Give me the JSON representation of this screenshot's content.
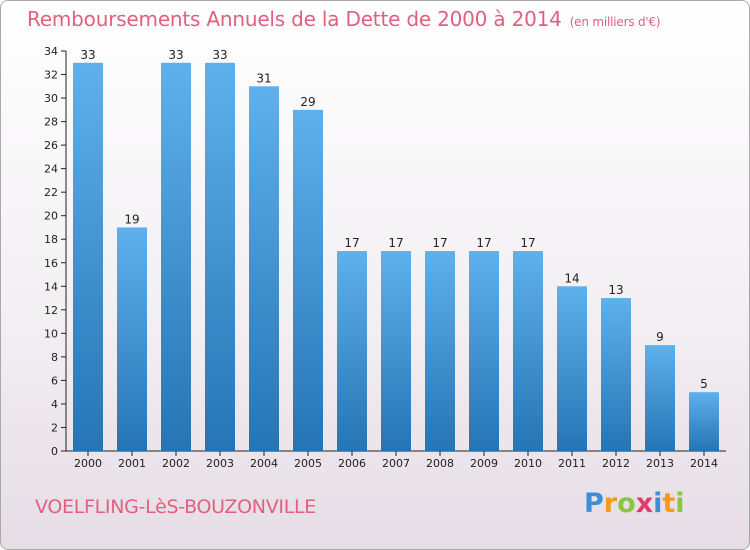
{
  "title": "Remboursements Annuels de la Dette de 2000 à 2014",
  "unit": "(en milliers d'€)",
  "city": "VOELFLING-LèS-BOUZONVILLE",
  "brand": {
    "letters": [
      "P",
      "r",
      "o",
      "x",
      "i",
      "t",
      "i"
    ],
    "colors": [
      "#3b8fd6",
      "#f39c1c",
      "#8cc63f",
      "#e23b6b",
      "#3b8fd6",
      "#f39c1c",
      "#8cc63f"
    ]
  },
  "colors": {
    "title": "#e0607e",
    "bar_top": "#5eb1ec",
    "bar_bottom": "#2674b4",
    "axis": "#222222"
  },
  "chart_data": {
    "type": "bar",
    "title": "Remboursements Annuels de la Dette de 2000 à 2014",
    "categories": [
      "2000",
      "2001",
      "2002",
      "2003",
      "2004",
      "2005",
      "2006",
      "2007",
      "2008",
      "2009",
      "2010",
      "2011",
      "2012",
      "2013",
      "2014"
    ],
    "values": [
      33,
      19,
      33,
      33,
      31,
      29,
      17,
      17,
      17,
      17,
      17,
      14,
      13,
      9,
      5
    ],
    "ylim": [
      0,
      34
    ],
    "yticks": [
      0,
      2,
      4,
      6,
      8,
      10,
      12,
      14,
      16,
      18,
      20,
      22,
      24,
      26,
      28,
      30,
      32,
      34
    ],
    "xlabel": "",
    "ylabel": "",
    "grid": false,
    "legend": "none",
    "data_labels": true
  }
}
